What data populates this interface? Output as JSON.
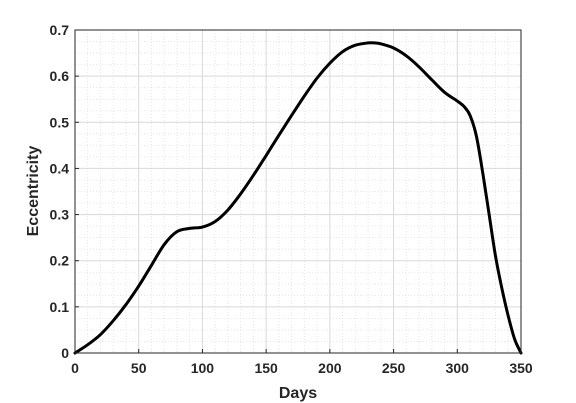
{
  "chart_data": {
    "type": "line",
    "title": "",
    "xlabel": "Days",
    "ylabel": "Eccentricity",
    "xlim": [
      0,
      350
    ],
    "ylim": [
      0,
      0.7
    ],
    "x_ticks": [
      0,
      50,
      100,
      150,
      200,
      250,
      300,
      350
    ],
    "x_tick_labels": [
      "0",
      "50",
      "100",
      "150",
      "200",
      "250",
      "300",
      "350"
    ],
    "y_ticks": [
      0,
      0.1,
      0.2,
      0.3,
      0.4,
      0.5,
      0.6,
      0.7
    ],
    "y_tick_labels": [
      "0",
      "0.1",
      "0.2",
      "0.3",
      "0.4",
      "0.5",
      "0.6",
      "0.7"
    ],
    "grid": "major and minor",
    "legend": "none",
    "colors": {
      "line": "#000000",
      "axes": "#262626",
      "grid": "#d9d9d9"
    },
    "series": [
      {
        "x": [
          0,
          10,
          20,
          30,
          40,
          50,
          60,
          70,
          80,
          90,
          100,
          110,
          120,
          130,
          140,
          150,
          160,
          170,
          180,
          190,
          200,
          210,
          220,
          230,
          235,
          240,
          250,
          260,
          270,
          280,
          290,
          300,
          305,
          310,
          315,
          320,
          325,
          330,
          335,
          340,
          345,
          350
        ],
        "y": [
          0,
          0.018,
          0.04,
          0.07,
          0.105,
          0.145,
          0.19,
          0.235,
          0.263,
          0.27,
          0.273,
          0.285,
          0.31,
          0.345,
          0.385,
          0.428,
          0.472,
          0.515,
          0.557,
          0.596,
          0.628,
          0.653,
          0.667,
          0.672,
          0.672,
          0.67,
          0.661,
          0.644,
          0.62,
          0.592,
          0.565,
          0.546,
          0.535,
          0.515,
          0.47,
          0.39,
          0.3,
          0.21,
          0.14,
          0.08,
          0.03,
          0
        ]
      }
    ]
  }
}
